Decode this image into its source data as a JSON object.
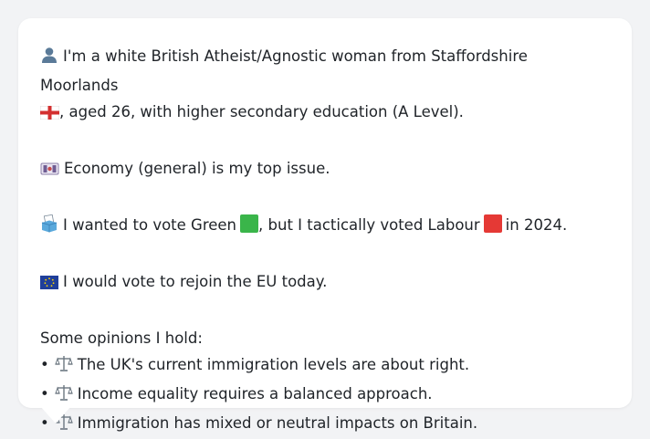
{
  "profile": {
    "intro": "I'm a white British Atheist/Agnostic woman from Staffordshire Moorlands",
    "intro_cont": ", aged 26, with higher secondary education (A Level).",
    "top_issue": "Economy (general) is my top issue.",
    "vote_part1": "I wanted to vote Green",
    "vote_part2": ", but I tactically voted Labour",
    "vote_part3": "in 2024.",
    "eu_stance": "I would vote to rejoin the EU today.",
    "opinions_heading": "Some opinions I hold:",
    "opinions": [
      "The UK's current immigration levels are about right.",
      "Income equality requires a balanced approach.",
      "Immigration has mixed or neutral impacts on Britain."
    ]
  },
  "icons": {
    "person": "person-icon",
    "england_flag": "england-flag-icon",
    "money": "banknote-icon",
    "ballot": "ballot-box-icon",
    "green_square": "green-square-icon",
    "red_square": "red-square-icon",
    "eu_flag": "eu-flag-icon",
    "balance": "balance-scale-icon"
  },
  "colors": {
    "green": "#3ab54a",
    "red": "#e53935",
    "eu_blue": "#1f3f9a",
    "eu_star": "#f7d000"
  }
}
